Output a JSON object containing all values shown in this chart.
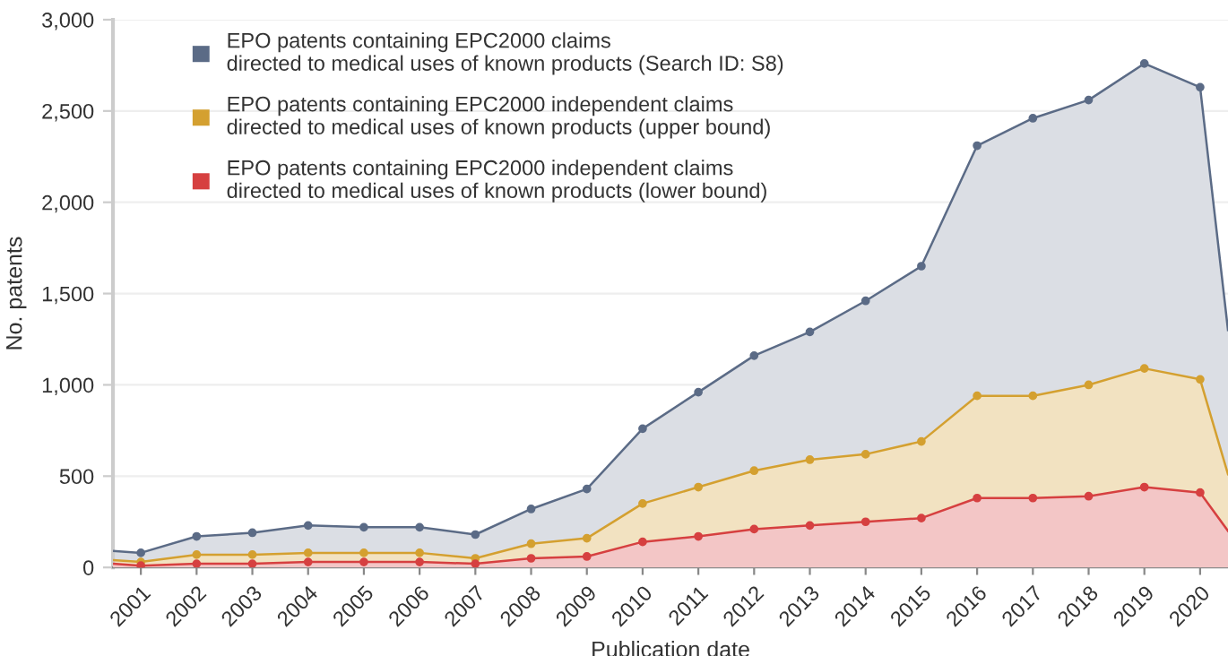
{
  "chart_data": {
    "type": "area",
    "xlabel": "Publication date",
    "ylabel": "No. patents",
    "x": [
      2000.5,
      2001,
      2002,
      2003,
      2004,
      2005,
      2006,
      2007,
      2008,
      2009,
      2010,
      2011,
      2012,
      2013,
      2014,
      2015,
      2016,
      2017,
      2018,
      2019,
      2020,
      2020.5
    ],
    "series": [
      {
        "name": "EPO patents containing EPC2000 claims\ndirected to medical uses of known products (Search ID: S8)",
        "color": "#5b6b86",
        "values": [
          90,
          80,
          170,
          190,
          230,
          220,
          220,
          180,
          320,
          430,
          760,
          960,
          1160,
          1290,
          1460,
          1650,
          2310,
          2460,
          2560,
          2760,
          2630,
          1300
        ]
      },
      {
        "name": "EPO patents containing EPC2000 independent claims\ndirected to medical uses of known products (upper bound)",
        "color": "#d4a030",
        "values": [
          40,
          30,
          70,
          70,
          80,
          80,
          80,
          50,
          130,
          160,
          350,
          440,
          530,
          590,
          620,
          690,
          940,
          940,
          1000,
          1090,
          1030,
          510
        ]
      },
      {
        "name": "EPO patents containing EPC2000 independent claims\ndirected to medical uses of known products (lower bound)",
        "color": "#d64040",
        "values": [
          20,
          10,
          20,
          20,
          30,
          30,
          30,
          20,
          50,
          60,
          140,
          170,
          210,
          230,
          250,
          270,
          380,
          380,
          390,
          440,
          410,
          200
        ]
      }
    ],
    "xlim": [
      2000.5,
      2020.5
    ],
    "xticks": [
      2001,
      2002,
      2003,
      2004,
      2005,
      2006,
      2007,
      2008,
      2009,
      2010,
      2011,
      2012,
      2013,
      2014,
      2015,
      2016,
      2017,
      2018,
      2019,
      2020
    ],
    "ylim": [
      0,
      3000
    ],
    "yticks": [
      0,
      500,
      {
        "value": 1000,
        "label": "1,000"
      },
      {
        "value": 1500,
        "label": "1,500"
      },
      {
        "value": 2000,
        "label": "2,000"
      },
      {
        "value": 2500,
        "label": "2,500"
      },
      {
        "value": 3000,
        "label": "3,000"
      }
    ],
    "grid": "y",
    "legend": "top left",
    "marker": "circle",
    "line_style": "solid"
  }
}
